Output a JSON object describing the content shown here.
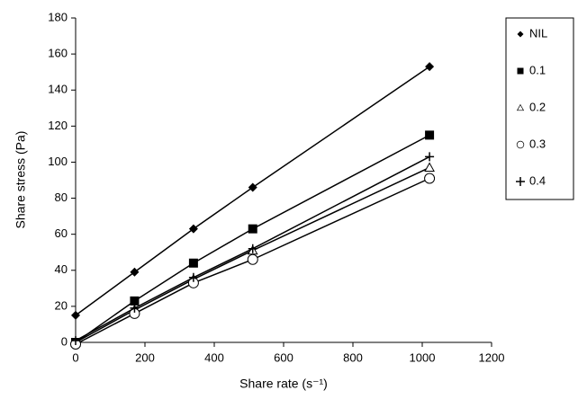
{
  "chart_data": {
    "type": "line",
    "x_label": "Share rate (s⁻¹)",
    "y_label": "Share stress (Pa)",
    "xlim": [
      0,
      1200
    ],
    "xticks": [
      0,
      200,
      400,
      600,
      800,
      1000,
      1200
    ],
    "ylim": [
      0,
      180
    ],
    "yticks": [
      0,
      20,
      40,
      60,
      80,
      100,
      120,
      140,
      160,
      180
    ],
    "grid": false,
    "legend": "right",
    "x": [
      0,
      170,
      340,
      511,
      1021
    ],
    "series": [
      {
        "name": "NIL",
        "color": "#000000",
        "marker": "diamond",
        "values": [
          15,
          39,
          63,
          86,
          153
        ]
      },
      {
        "name": "0.1",
        "color": "#000000",
        "marker": "square",
        "values": [
          0,
          23,
          44,
          63,
          115
        ]
      },
      {
        "name": "0.2",
        "color": "#000000",
        "marker": "triangle",
        "values": [
          0,
          18,
          35,
          51,
          97
        ]
      },
      {
        "name": "0.3",
        "color": "#000000",
        "marker": "circle",
        "values": [
          -1,
          16,
          33,
          46,
          91
        ]
      },
      {
        "name": "0.4",
        "color": "#000000",
        "marker": "plus",
        "values": [
          1,
          19,
          36,
          52,
          103
        ]
      }
    ]
  }
}
